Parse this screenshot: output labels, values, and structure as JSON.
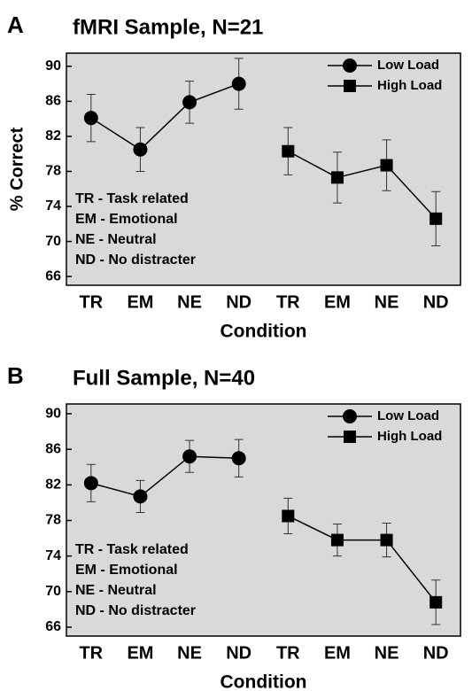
{
  "chart_data": [
    {
      "type": "line",
      "panel": "A",
      "title": "fMRI Sample, N=21",
      "ylabel": "% Correct",
      "xlabel": "Condition",
      "categories": [
        "TR",
        "EM",
        "NE",
        "ND",
        "TR",
        "EM",
        "NE",
        "ND"
      ],
      "series": [
        {
          "name": "Low Load",
          "marker": "circle",
          "color": "#000000",
          "values": [
            84.1,
            80.5,
            85.9,
            88.0,
            null,
            null,
            null,
            null
          ],
          "errors": [
            2.7,
            2.5,
            2.4,
            2.9,
            null,
            null,
            null,
            null
          ]
        },
        {
          "name": "High Load",
          "marker": "square",
          "color": "#000000",
          "values": [
            null,
            null,
            null,
            null,
            80.3,
            77.3,
            78.7,
            72.6
          ],
          "errors": [
            null,
            null,
            null,
            null,
            2.7,
            2.9,
            2.9,
            3.1
          ]
        }
      ],
      "ylim": [
        65,
        91.5
      ],
      "yticks": [
        66,
        70,
        74,
        78,
        82,
        86,
        90
      ],
      "legend": "upper right",
      "background": "#d9d9d9",
      "annotations": [
        "TR - Task related",
        "EM - Emotional",
        "NE - Neutral",
        "ND - No distracter"
      ]
    },
    {
      "type": "line",
      "panel": "B",
      "title": "Full Sample, N=40",
      "xlabel": "Condition",
      "categories": [
        "TR",
        "EM",
        "NE",
        "ND",
        "TR",
        "EM",
        "NE",
        "ND"
      ],
      "series": [
        {
          "name": "Low Load",
          "marker": "circle",
          "color": "#000000",
          "values": [
            82.2,
            80.7,
            85.2,
            85.0,
            null,
            null,
            null,
            null
          ],
          "errors": [
            2.1,
            1.8,
            1.8,
            2.1,
            null,
            null,
            null,
            null
          ]
        },
        {
          "name": "High Load",
          "marker": "square",
          "color": "#000000",
          "values": [
            null,
            null,
            null,
            null,
            78.5,
            75.8,
            75.8,
            68.8
          ],
          "errors": [
            null,
            null,
            null,
            null,
            2.0,
            1.8,
            1.9,
            2.5
          ]
        }
      ],
      "ylim": [
        65,
        91.1
      ],
      "yticks": [
        66,
        70,
        74,
        78,
        82,
        86,
        90
      ],
      "legend": "upper right",
      "background": "#d9d9d9",
      "annotations": [
        "TR - Task related",
        "EM - Emotional",
        "NE - Neutral",
        "ND - No distracter"
      ]
    }
  ]
}
